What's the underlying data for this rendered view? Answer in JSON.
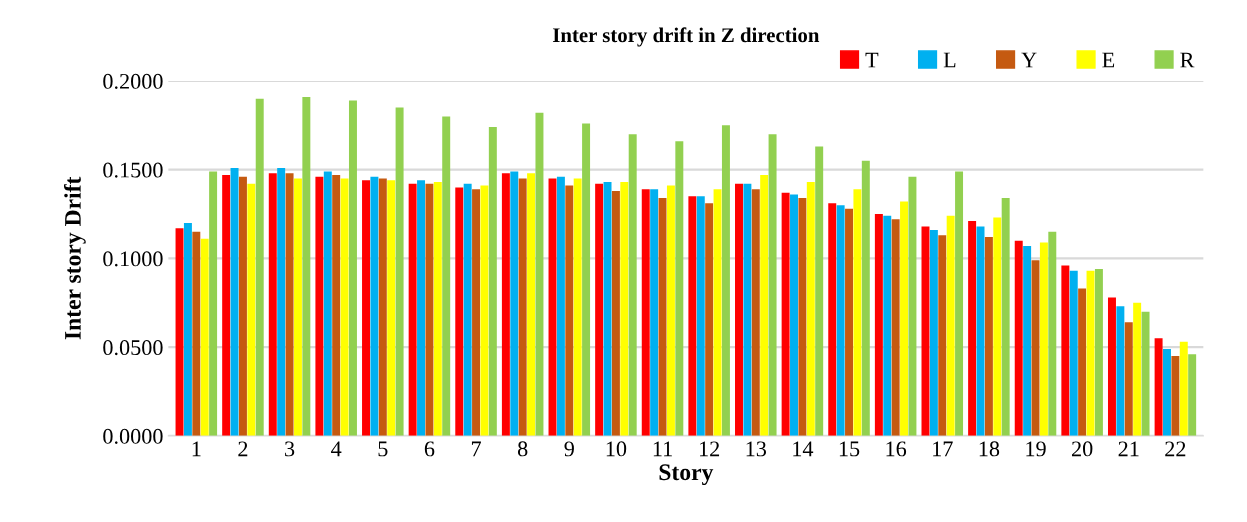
{
  "chart_data": {
    "type": "bar",
    "title": "Inter story drift in Z direction",
    "xlabel": "Story",
    "ylabel": "Inter story Drift",
    "categories": [
      "1",
      "2",
      "3",
      "4",
      "5",
      "6",
      "7",
      "8",
      "9",
      "10",
      "11",
      "12",
      "13",
      "14",
      "15",
      "16",
      "17",
      "18",
      "19",
      "20",
      "21",
      "22"
    ],
    "series": [
      {
        "name": "T",
        "color": "#ff0000",
        "values": [
          0.117,
          0.147,
          0.148,
          0.146,
          0.144,
          0.142,
          0.14,
          0.148,
          0.145,
          0.142,
          0.139,
          0.135,
          0.142,
          0.137,
          0.131,
          0.125,
          0.118,
          0.121,
          0.11,
          0.096,
          0.078,
          0.055
        ]
      },
      {
        "name": "L",
        "color": "#00b0f0",
        "values": [
          0.12,
          0.151,
          0.151,
          0.149,
          0.146,
          0.144,
          0.142,
          0.149,
          0.146,
          0.143,
          0.139,
          0.135,
          0.142,
          0.136,
          0.13,
          0.124,
          0.116,
          0.118,
          0.107,
          0.093,
          0.073,
          0.049
        ]
      },
      {
        "name": "Y",
        "color": "#c55a11",
        "values": [
          0.115,
          0.146,
          0.148,
          0.147,
          0.145,
          0.142,
          0.139,
          0.145,
          0.141,
          0.138,
          0.134,
          0.131,
          0.139,
          0.134,
          0.128,
          0.122,
          0.113,
          0.112,
          0.099,
          0.083,
          0.064,
          0.045
        ]
      },
      {
        "name": "E",
        "color": "#ffff00",
        "values": [
          0.111,
          0.142,
          0.145,
          0.145,
          0.144,
          0.143,
          0.141,
          0.148,
          0.145,
          0.143,
          0.141,
          0.139,
          0.147,
          0.143,
          0.139,
          0.132,
          0.124,
          0.123,
          0.109,
          0.093,
          0.075,
          0.053
        ]
      },
      {
        "name": "R",
        "color": "#92d050",
        "values": [
          0.149,
          0.19,
          0.191,
          0.189,
          0.185,
          0.18,
          0.174,
          0.182,
          0.176,
          0.17,
          0.166,
          0.175,
          0.17,
          0.163,
          0.155,
          0.146,
          0.149,
          0.134,
          0.115,
          0.094,
          0.07,
          0.046
        ]
      }
    ],
    "ylim": [
      0,
      0.2
    ],
    "yticks": [
      {
        "value": 0,
        "label": "0.0000"
      },
      {
        "value": 0.05,
        "label": "0.0500"
      },
      {
        "value": 0.1,
        "label": "0.1000"
      },
      {
        "value": 0.15,
        "label": "0.1500"
      },
      {
        "value": 0.2,
        "label": "0.2000"
      }
    ],
    "grid": "y",
    "legend": "top right"
  }
}
